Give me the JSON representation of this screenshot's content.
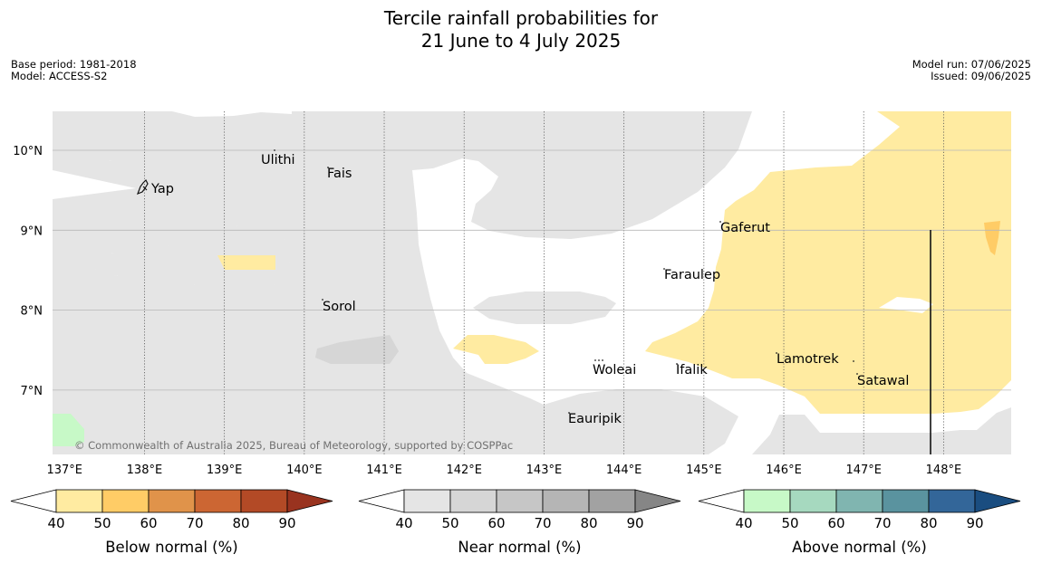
{
  "header": {
    "title_line1": "Tercile rainfall probabilities for",
    "title_line2": "21 June to 4 July 2025",
    "base_period": "Base period: 1981-2018",
    "model": "Model: ACCESS-S2",
    "model_run": "Model run: 07/06/2025",
    "issued": "Issued: 09/06/2025"
  },
  "map": {
    "lon_labels": [
      "137°E",
      "138°E",
      "139°E",
      "140°E",
      "141°E",
      "142°E",
      "143°E",
      "144°E",
      "145°E",
      "146°E",
      "147°E",
      "148°E"
    ],
    "lat_labels": [
      "10°N",
      "9°N",
      "8°N",
      "7°N"
    ],
    "places": [
      "Ulithi",
      "Fais",
      "Yap",
      "Gaferut",
      "Faraulep",
      "Sorol",
      "Lamotrek",
      "Woleai",
      "Ifalik",
      "Satawal",
      "Eauripik"
    ],
    "copyright": "© Commonwealth of Australia 2025, Bureau of Meteorology, supported by COSPPac",
    "colors": {
      "near_normal_40_50": "#e5e5e5",
      "near_normal_50_60": "#d6d6d6",
      "below_normal_40_50": "#ffeba1",
      "below_normal_50_60": "#ffcc66",
      "above_normal_40_50": "#c7f9c7"
    }
  },
  "colorbars": [
    {
      "title": "Below normal (%)",
      "ticks": [
        "40",
        "50",
        "60",
        "70",
        "80",
        "90"
      ],
      "colors": [
        "#ffeba1",
        "#ffcc66",
        "#e0934a",
        "#cc6633",
        "#b34a26",
        "#99331f"
      ]
    },
    {
      "title": "Near normal (%)",
      "ticks": [
        "40",
        "50",
        "60",
        "70",
        "80",
        "90"
      ],
      "colors": [
        "#e5e5e5",
        "#d6d6d6",
        "#c6c6c6",
        "#b5b5b5",
        "#a2a2a2",
        "#868686"
      ]
    },
    {
      "title": "Above normal (%)",
      "ticks": [
        "40",
        "50",
        "60",
        "70",
        "80",
        "90"
      ],
      "colors": [
        "#c7f9c7",
        "#a6d9bf",
        "#80b5b0",
        "#5a939f",
        "#336699",
        "#1a4d80"
      ]
    }
  ]
}
